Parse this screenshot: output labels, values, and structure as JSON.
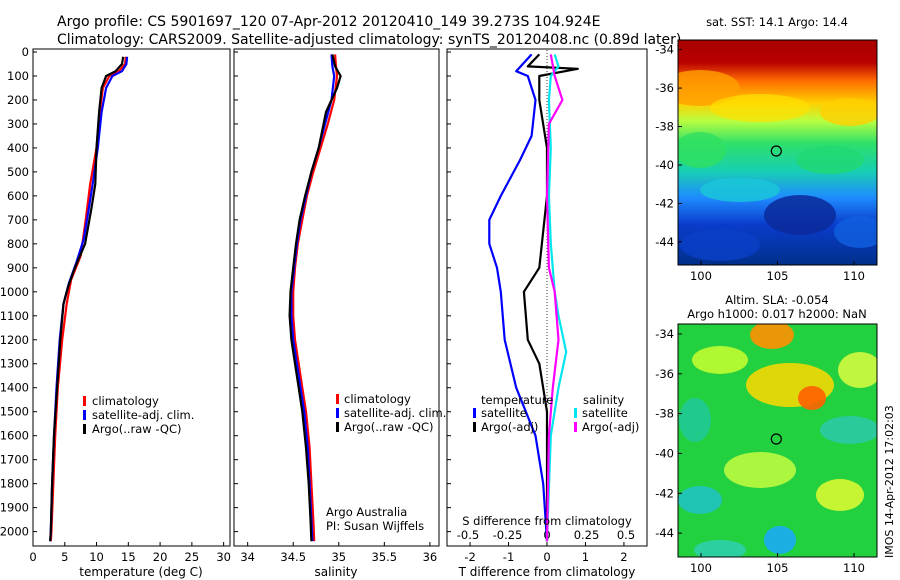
{
  "header": {
    "line1": "Argo profile: CS 5901697_120 07-Apr-2012 20120410_149 39.273S 104.924E",
    "line2": "Climatology: CARS2009. Satellite-adjusted climatology: synTS_20120408.nc (0.89d later)"
  },
  "side_stamp": "IMOS 14-Apr-2012 17:02:03",
  "colors": {
    "climatology": "#ff0000",
    "satellite": "#0000ff",
    "argo": "#000000",
    "sat_salinity": "#00e5ee",
    "argo_salinity": "#ff00ff"
  },
  "chart_data": [
    {
      "type": "line",
      "panel": "temperature",
      "xlabel": "temperature (deg C)",
      "xlim": [
        0,
        31
      ],
      "xticks": [
        0,
        5,
        10,
        15,
        20,
        25,
        30
      ],
      "ylim": [
        2060,
        0
      ],
      "yticks": [
        0,
        100,
        200,
        300,
        400,
        500,
        600,
        700,
        800,
        900,
        1000,
        1100,
        1200,
        1300,
        1400,
        1500,
        1600,
        1700,
        1800,
        1900,
        2000
      ],
      "legend": [
        "climatology",
        "satellite-adj. clim.",
        "Argo(..raw -QC)"
      ],
      "series": [
        {
          "name": "climatology",
          "color": "#ff0000",
          "points": [
            [
              14.6,
              20
            ],
            [
              14.5,
              50
            ],
            [
              13.5,
              80
            ],
            [
              12.0,
              100
            ],
            [
              11.0,
              150
            ],
            [
              10.5,
              250
            ],
            [
              10.0,
              400
            ],
            [
              9.0,
              550
            ],
            [
              8.3,
              700
            ],
            [
              7.5,
              850
            ],
            [
              6.0,
              950
            ],
            [
              5.3,
              1050
            ],
            [
              4.6,
              1200
            ],
            [
              3.9,
              1400
            ],
            [
              3.5,
              1600
            ],
            [
              3.2,
              1800
            ],
            [
              2.9,
              2000
            ],
            [
              2.8,
              2040
            ]
          ]
        },
        {
          "name": "satellite-adj. clim.",
          "color": "#0000ff",
          "points": [
            [
              14.8,
              20
            ],
            [
              14.7,
              50
            ],
            [
              14.0,
              80
            ],
            [
              12.5,
              100
            ],
            [
              11.5,
              150
            ],
            [
              10.8,
              250
            ],
            [
              10.2,
              400
            ],
            [
              9.4,
              550
            ],
            [
              8.8,
              650
            ],
            [
              8.0,
              780
            ],
            [
              6.8,
              880
            ],
            [
              5.7,
              960
            ],
            [
              4.8,
              1050
            ],
            [
              4.2,
              1200
            ],
            [
              3.7,
              1400
            ],
            [
              3.3,
              1600
            ],
            [
              3.0,
              1800
            ],
            [
              2.8,
              2000
            ],
            [
              2.7,
              2040
            ]
          ]
        },
        {
          "name": "Argo(..raw -QC)",
          "color": "#000000",
          "points": [
            [
              14.2,
              20
            ],
            [
              14.0,
              50
            ],
            [
              13.0,
              80
            ],
            [
              11.5,
              100
            ],
            [
              10.8,
              150
            ],
            [
              10.4,
              250
            ],
            [
              10.0,
              400
            ],
            [
              9.8,
              550
            ],
            [
              9.2,
              650
            ],
            [
              8.2,
              800
            ],
            [
              6.6,
              900
            ],
            [
              5.5,
              980
            ],
            [
              4.8,
              1050
            ],
            [
              4.3,
              1200
            ],
            [
              3.8,
              1400
            ],
            [
              3.3,
              1600
            ],
            [
              3.0,
              1800
            ],
            [
              2.8,
              2000
            ],
            [
              2.7,
              2040
            ]
          ]
        }
      ]
    },
    {
      "type": "line",
      "panel": "salinity",
      "xlabel": "salinity",
      "xlim": [
        33.85,
        36.1
      ],
      "xticks": [
        34,
        34.5,
        35,
        35.5,
        36
      ],
      "xtick_labels": [
        "34",
        "34.5",
        "35",
        "35.5",
        "36"
      ],
      "ylim": [
        2060,
        0
      ],
      "legend": [
        "climatology",
        "satellite-adj. clim.",
        "Argo(..raw -QC)"
      ],
      "annotation": [
        "Argo Australia",
        "PI: Susan Wijffels"
      ],
      "series": [
        {
          "name": "climatology",
          "color": "#ff0000",
          "points": [
            [
              34.96,
              10
            ],
            [
              34.97,
              60
            ],
            [
              34.98,
              100
            ],
            [
              34.95,
              200
            ],
            [
              34.88,
              300
            ],
            [
              34.8,
              400
            ],
            [
              34.72,
              500
            ],
            [
              34.65,
              600
            ],
            [
              34.6,
              700
            ],
            [
              34.55,
              800
            ],
            [
              34.52,
              900
            ],
            [
              34.5,
              1000
            ],
            [
              34.5,
              1100
            ],
            [
              34.52,
              1200
            ],
            [
              34.56,
              1300
            ],
            [
              34.6,
              1400
            ],
            [
              34.64,
              1500
            ],
            [
              34.68,
              1650
            ],
            [
              34.7,
              1800
            ],
            [
              34.72,
              1950
            ],
            [
              34.73,
              2040
            ]
          ]
        },
        {
          "name": "satellite-adj. clim.",
          "color": "#0000ff",
          "points": [
            [
              34.92,
              10
            ],
            [
              34.93,
              60
            ],
            [
              34.95,
              100
            ],
            [
              34.92,
              200
            ],
            [
              34.85,
              300
            ],
            [
              34.78,
              400
            ],
            [
              34.7,
              500
            ],
            [
              34.64,
              600
            ],
            [
              34.58,
              700
            ],
            [
              34.54,
              800
            ],
            [
              34.51,
              900
            ],
            [
              34.48,
              1000
            ],
            [
              34.48,
              1100
            ],
            [
              34.5,
              1200
            ],
            [
              34.54,
              1300
            ],
            [
              34.58,
              1400
            ],
            [
              34.62,
              1500
            ],
            [
              34.66,
              1650
            ],
            [
              34.68,
              1800
            ],
            [
              34.7,
              1950
            ],
            [
              34.71,
              2040
            ]
          ]
        },
        {
          "name": "Argo(..raw -QC)",
          "color": "#000000",
          "points": [
            [
              34.93,
              10
            ],
            [
              34.96,
              60
            ],
            [
              35.02,
              100
            ],
            [
              34.98,
              150
            ],
            [
              34.86,
              250
            ],
            [
              34.78,
              400
            ],
            [
              34.7,
              500
            ],
            [
              34.63,
              600
            ],
            [
              34.57,
              700
            ],
            [
              34.53,
              800
            ],
            [
              34.5,
              900
            ],
            [
              34.47,
              1000
            ],
            [
              34.46,
              1100
            ],
            [
              34.48,
              1200
            ],
            [
              34.52,
              1300
            ],
            [
              34.56,
              1400
            ],
            [
              34.6,
              1500
            ],
            [
              34.64,
              1650
            ],
            [
              34.67,
              1800
            ],
            [
              34.69,
              1950
            ],
            [
              34.7,
              2040
            ]
          ]
        }
      ]
    },
    {
      "type": "line",
      "panel": "difference",
      "xlabel": "T difference from climatology",
      "xlim": [
        -2.6,
        2.6
      ],
      "xticks": [
        -2,
        -1,
        0,
        1,
        2
      ],
      "top_axis_label": "S difference from climatology",
      "top_ticks": [
        -0.5,
        -0.25,
        0,
        0.25,
        0.5
      ],
      "top_tick_labels": [
        "-0.5",
        "-0.25",
        "0",
        "0.25",
        "0.5"
      ],
      "ylim": [
        2060,
        0
      ],
      "legend_titles": [
        "temperature",
        "salinity"
      ],
      "legend": [
        "satellite",
        "Argo(-adj)",
        "satellite",
        "Argo(-adj)"
      ],
      "series": [
        {
          "name": "satellite",
          "color": "#0000ff",
          "points": [
            [
              -0.4,
              10
            ],
            [
              -0.8,
              80
            ],
            [
              -0.5,
              100
            ],
            [
              -0.3,
              200
            ],
            [
              -0.4,
              350
            ],
            [
              -0.7,
              450
            ],
            [
              -1.2,
              600
            ],
            [
              -1.5,
              700
            ],
            [
              -1.5,
              800
            ],
            [
              -1.3,
              900
            ],
            [
              -1.2,
              1000
            ],
            [
              -1.1,
              1200
            ],
            [
              -0.8,
              1400
            ],
            [
              -0.3,
              1600
            ],
            [
              -0.1,
              1800
            ],
            [
              0,
              2040
            ]
          ]
        },
        {
          "name": "Argo(-adj)",
          "color": "#000000",
          "points": [
            [
              -0.2,
              10
            ],
            [
              -0.5,
              60
            ],
            [
              0.8,
              70
            ],
            [
              -0.2,
              100
            ],
            [
              -0.2,
              200
            ],
            [
              0,
              400
            ],
            [
              0,
              600
            ],
            [
              -0.2,
              900
            ],
            [
              -0.6,
              1000
            ],
            [
              -0.5,
              1200
            ],
            [
              -0.2,
              1300
            ],
            [
              0,
              1500
            ],
            [
              0,
              2040
            ]
          ]
        },
        {
          "name": "satellite",
          "color": "#00e5ee",
          "points": [
            [
              0.2,
              10
            ],
            [
              0.3,
              60
            ],
            [
              0.1,
              100
            ],
            [
              0.05,
              200
            ],
            [
              0.1,
              400
            ],
            [
              0.05,
              600
            ],
            [
              0.1,
              800
            ],
            [
              0.2,
              1000
            ],
            [
              0.3,
              1100
            ],
            [
              0.5,
              1250
            ],
            [
              0.3,
              1400
            ],
            [
              0.1,
              1600
            ],
            [
              0,
              2040
            ]
          ]
        },
        {
          "name": "Argo(-adj)",
          "color": "#ff00ff",
          "points": [
            [
              0.1,
              10
            ],
            [
              0.2,
              100
            ],
            [
              0.4,
              200
            ],
            [
              0.05,
              300
            ],
            [
              0,
              600
            ],
            [
              0.05,
              900
            ],
            [
              0.2,
              1000
            ],
            [
              0.3,
              1200
            ],
            [
              0.15,
              1400
            ],
            [
              0.05,
              1600
            ],
            [
              0,
              2040
            ]
          ]
        }
      ]
    },
    {
      "type": "heatmap",
      "panel": "sst-map",
      "title": "sat. SST: 14.1 Argo: 14.4",
      "xlim": [
        98.5,
        111.5
      ],
      "ylim": [
        -45.2,
        -33.5
      ],
      "xticks": [
        100,
        105,
        110
      ],
      "yticks": [
        -34,
        -36,
        -38,
        -40,
        -42,
        -44
      ],
      "marker": [
        104.924,
        -39.273
      ]
    },
    {
      "type": "heatmap",
      "panel": "sla-map",
      "title_lines": [
        "Altim. SLA: -0.054",
        "Argo h1000: 0.017 h2000: NaN"
      ],
      "xlim": [
        98.5,
        111.5
      ],
      "ylim": [
        -45.2,
        -33.5
      ],
      "xticks": [
        100,
        105,
        110
      ],
      "yticks": [
        -34,
        -36,
        -38,
        -40,
        -42,
        -44
      ],
      "marker": [
        104.924,
        -39.273
      ]
    }
  ]
}
